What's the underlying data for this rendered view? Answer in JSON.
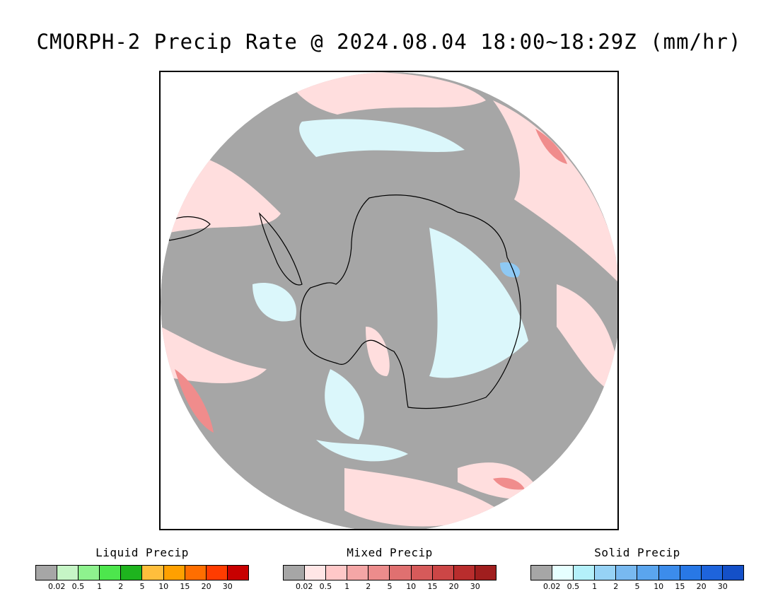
{
  "title": "CMORPH-2 Precip Rate @ 2024.08.04 18:00~18:29Z (mm/hr)",
  "map": {
    "projection": "south-polar-stereographic",
    "colors": {
      "no_data_or_below_threshold": "#a6a6a6",
      "outside_disk": "#ffffff",
      "coastline": "#000000",
      "mixed_light": "#ffdede",
      "solid_light": "#dbf7fb",
      "solid_medium": "#8ec9f4",
      "mixed_heavy": "#f08c8c"
    }
  },
  "legends": [
    {
      "title": "Liquid Precip",
      "colors": [
        "#a6a6a6",
        "#c6f5c6",
        "#8ef28e",
        "#4de64d",
        "#1eb41e",
        "#ffbe3c",
        "#ffa000",
        "#ff6e00",
        "#ff3c00",
        "#c80000"
      ],
      "ticks": [
        "0.02",
        "0.5",
        "1",
        "2",
        "5",
        "10",
        "15",
        "20",
        "30"
      ]
    },
    {
      "title": "Mixed Precip",
      "colors": [
        "#a6a6a6",
        "#ffe6e6",
        "#ffc8c8",
        "#f4a6a6",
        "#ec8c8c",
        "#e07070",
        "#d65a5a",
        "#cc4646",
        "#b92d2d",
        "#a01e1e"
      ],
      "ticks": [
        "0.02",
        "0.5",
        "1",
        "2",
        "5",
        "10",
        "15",
        "20",
        "30"
      ]
    },
    {
      "title": "Solid Precip",
      "colors": [
        "#a6a6a6",
        "#e6ffff",
        "#b4f0fa",
        "#96d2f5",
        "#78b9f0",
        "#5aa5ee",
        "#3c8ceb",
        "#2878e6",
        "#1e64dc",
        "#1450c8"
      ],
      "ticks": [
        "0.02",
        "0.5",
        "1",
        "2",
        "5",
        "10",
        "15",
        "20",
        "30"
      ]
    }
  ]
}
